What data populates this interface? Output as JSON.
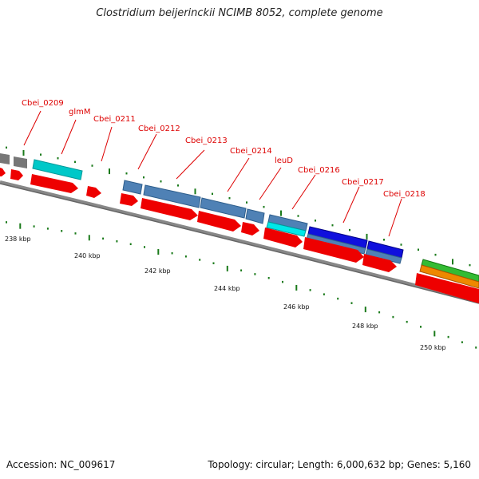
{
  "title": "Clostridium beijerinckii NCIMB 8052, complete genome",
  "footer": {
    "accession": "Accession: NC_009617",
    "summary": "Topology: circular; Length: 6,000,632 bp; Genes: 5,160"
  },
  "colors": {
    "cds": "#ee0000",
    "gene_label": "#dd0000",
    "backbone": "#888888",
    "tick": "#1a7a1a",
    "steelblue": "#4f81b5",
    "cyan": "#00cccc",
    "blue": "#1010dd",
    "green": "#33bb33",
    "orange": "#ee8800",
    "gray": "#777777"
  },
  "gene_labels": [
    "Cbei_0209",
    "glmM",
    "Cbei_0211",
    "Cbei_0212",
    "Cbei_0213",
    "Cbei_0214",
    "leuD",
    "Cbei_0216",
    "Cbei_0217",
    "Cbei_0218"
  ],
  "position_labels": [
    "238 kbp",
    "240 kbp",
    "242 kbp",
    "244 kbp",
    "246 kbp",
    "248 kbp",
    "250 kbp"
  ]
}
